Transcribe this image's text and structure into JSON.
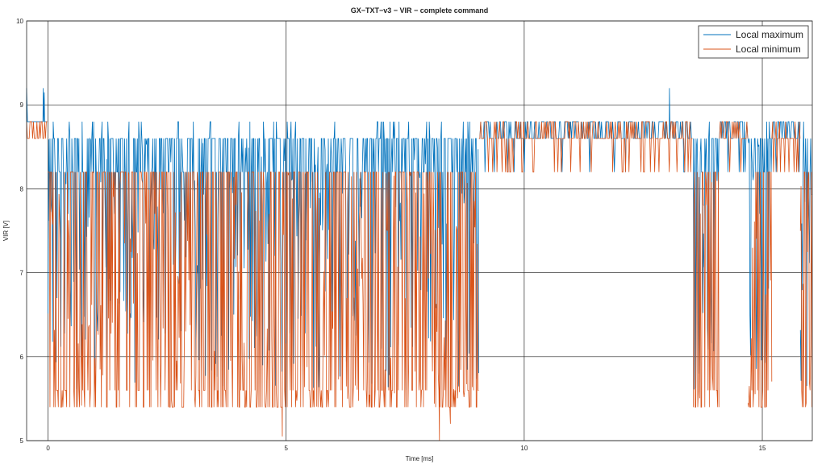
{
  "chart_data": {
    "type": "line",
    "title": "GX−TXT−v3 − VIR − complete command",
    "xlabel": "Time [ms]",
    "ylabel": "VIR [V]",
    "xlim": [
      -0.45,
      16.05
    ],
    "ylim": [
      5,
      10
    ],
    "xticks": [
      0,
      5,
      10,
      15
    ],
    "yticks": [
      5,
      6,
      7,
      8,
      9,
      10
    ],
    "grid": true,
    "legend_position": "top-right",
    "series": [
      {
        "name": "Local maximum",
        "color": "#0072BD",
        "segments": [
          {
            "x_start": -0.45,
            "x_end": 0.0,
            "mode": "flat_high",
            "base": 8.8,
            "spikes": [
              {
                "x": -0.45,
                "y": 9.2
              },
              {
                "x": -0.1,
                "y": 9.2
              },
              {
                "x": -0.08,
                "y": 9.15
              }
            ]
          },
          {
            "x_start": 0.0,
            "x_end": 9.05,
            "mode": "dense",
            "top": 8.6,
            "band": [
              8.2,
              8.6
            ],
            "low_min": 5.6,
            "occasional_peak": 8.8
          },
          {
            "x_start": 9.05,
            "x_end": 13.55,
            "mode": "sparse",
            "base": 8.6,
            "high": 8.8,
            "low": 8.2,
            "spikes": [
              {
                "x": 13.05,
                "y": 9.2
              }
            ]
          },
          {
            "x_start": 13.55,
            "x_end": 14.1,
            "mode": "dense",
            "top": 8.6,
            "band": [
              8.2,
              8.6
            ],
            "low_min": 5.6,
            "occasional_peak": 8.8
          },
          {
            "x_start": 14.1,
            "x_end": 14.7,
            "mode": "sparse",
            "base": 8.6,
            "high": 8.8,
            "low": 8.2
          },
          {
            "x_start": 14.7,
            "x_end": 15.2,
            "mode": "dense",
            "top": 8.6,
            "band": [
              8.2,
              8.6
            ],
            "low_min": 5.6,
            "occasional_peak": 8.8
          },
          {
            "x_start": 15.2,
            "x_end": 15.8,
            "mode": "sparse",
            "base": 8.6,
            "high": 8.8,
            "low": 8.2
          },
          {
            "x_start": 15.8,
            "x_end": 16.05,
            "mode": "dense",
            "top": 8.6,
            "band": [
              8.2,
              8.6
            ],
            "low_min": 5.6,
            "occasional_peak": 8.8
          }
        ]
      },
      {
        "name": "Local minimum",
        "color": "#D95319",
        "segments": [
          {
            "x_start": -0.45,
            "x_end": 0.0,
            "mode": "flat_low",
            "base": 8.6,
            "high": 8.8
          },
          {
            "x_start": 0.0,
            "x_end": 9.05,
            "mode": "dense",
            "top": 8.2,
            "bottom": 5.4,
            "mid_bottom": 5.6,
            "dips": [
              {
                "x": 4.92,
                "y": 5.05
              },
              {
                "x": 8.22,
                "y": 5.0
              },
              {
                "x": 8.45,
                "y": 5.2
              }
            ]
          },
          {
            "x_start": 9.05,
            "x_end": 13.55,
            "mode": "sparse",
            "base": 8.6,
            "high": 8.8,
            "low": 8.2
          },
          {
            "x_start": 13.55,
            "x_end": 14.1,
            "mode": "dense",
            "top": 8.2,
            "bottom": 5.4,
            "mid_bottom": 5.6
          },
          {
            "x_start": 14.1,
            "x_end": 14.7,
            "mode": "sparse",
            "base": 8.6,
            "high": 8.8,
            "low": 8.2
          },
          {
            "x_start": 14.7,
            "x_end": 15.2,
            "mode": "dense",
            "top": 8.2,
            "bottom": 5.4,
            "mid_bottom": 5.6
          },
          {
            "x_start": 15.2,
            "x_end": 15.8,
            "mode": "sparse",
            "base": 8.6,
            "high": 8.8,
            "low": 8.2
          },
          {
            "x_start": 15.8,
            "x_end": 16.05,
            "mode": "dense",
            "top": 8.2,
            "bottom": 5.4,
            "mid_bottom": 5.6
          }
        ]
      }
    ]
  }
}
